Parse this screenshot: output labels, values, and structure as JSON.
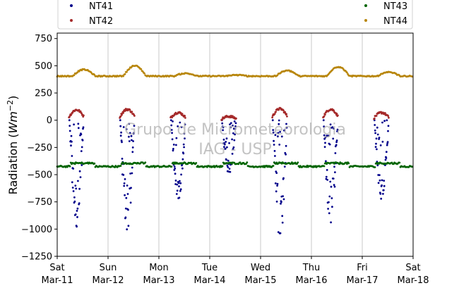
{
  "chart_data": {
    "type": "scatter",
    "title": "",
    "ylabel": "Radiation (Wm⁻²)",
    "ylabel_parts": {
      "base": "Radiation (",
      "unit": "Wm",
      "exp": "−2",
      "close": ")"
    },
    "xlabel": "",
    "ylim": [
      -1250,
      800
    ],
    "yticks": [
      750,
      500,
      250,
      0,
      -250,
      -500,
      -750,
      -1000,
      -1250
    ],
    "ytick_labels": [
      "750",
      "500",
      "250",
      "0",
      "−250",
      "−500",
      "−750",
      "−1000",
      "−1250"
    ],
    "xlim": [
      "2024-03-11",
      "2024-03-18"
    ],
    "xticks": [
      {
        "date": "Mar-11",
        "day": "Sat"
      },
      {
        "date": "Mar-12",
        "day": "Sun"
      },
      {
        "date": "Mar-13",
        "day": "Mon"
      },
      {
        "date": "Mar-14",
        "day": "Tue"
      },
      {
        "date": "Mar-15",
        "day": "Wed"
      },
      {
        "date": "Mar-16",
        "day": "Thu"
      },
      {
        "date": "Mar-17",
        "day": "Fri"
      },
      {
        "date": "Mar-18",
        "day": "Sat"
      }
    ],
    "grid": "vertical",
    "legend": "top",
    "watermark": [
      "Grupo de Micrometeorologia",
      "IAG - USP"
    ],
    "series": [
      {
        "name": "NT41",
        "color": "#00008b",
        "daily_min": [
          -1020,
          -1065,
          -780,
          -500,
          -1150,
          -1030,
          -780
        ],
        "daily_scatter": [
          0.9,
          0.9,
          0.6,
          0.5,
          0.9,
          0.9,
          0.6
        ]
      },
      {
        "name": "NT42",
        "color": "#a52a2a",
        "daily_max": [
          95,
          100,
          70,
          35,
          105,
          100,
          70
        ]
      },
      {
        "name": "NT43",
        "color": "#006400",
        "base": -415,
        "amplitude": 25,
        "night_value": -395,
        "day_value": -425
      },
      {
        "name": "NT44",
        "color": "#b8860b",
        "base": 405,
        "daily_peak": [
          465,
          500,
          430,
          415,
          455,
          490,
          440
        ]
      }
    ]
  }
}
